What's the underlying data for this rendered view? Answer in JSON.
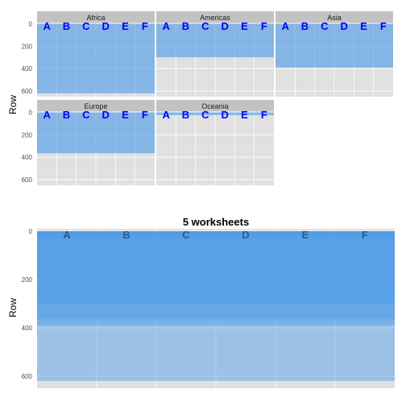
{
  "chart_data": [
    {
      "type": "heatmap",
      "title": "",
      "xlabel": "",
      "ylabel": "Row",
      "ylim": [
        650,
        -10
      ],
      "yticks": [
        0,
        200,
        400,
        600
      ],
      "columns": [
        "A",
        "B",
        "C",
        "D",
        "E",
        "F"
      ],
      "column_label_color": "#0000ff",
      "fill_color": "#4c9be8",
      "panel_bg": "#e0e0e0",
      "strip_bg": "#c2c2c2",
      "facets": [
        {
          "name": "Africa",
          "rows": 620
        },
        {
          "name": "Americas",
          "rows": 300
        },
        {
          "name": "Asia",
          "rows": 390
        },
        {
          "name": "Europe",
          "rows": 365
        },
        {
          "name": "Oceania",
          "rows": 25
        }
      ]
    },
    {
      "type": "heatmap",
      "title": "5 worksheets",
      "xlabel": "",
      "ylabel": "Row",
      "ylim": [
        650,
        -10
      ],
      "yticks": [
        0,
        200,
        400,
        600
      ],
      "columns": [
        "A",
        "B",
        "C",
        "D",
        "E",
        "F"
      ],
      "column_label_color": "#2f5a8a",
      "fill_color": "#4c9be8",
      "panel_bg": "#e0e0e0",
      "bands": [
        {
          "from": 0,
          "to": 25,
          "sheets": 5
        },
        {
          "from": 25,
          "to": 300,
          "sheets": 4
        },
        {
          "from": 300,
          "to": 365,
          "sheets": 3
        },
        {
          "from": 365,
          "to": 390,
          "sheets": 2
        },
        {
          "from": 390,
          "to": 620,
          "sheets": 1
        }
      ]
    }
  ]
}
